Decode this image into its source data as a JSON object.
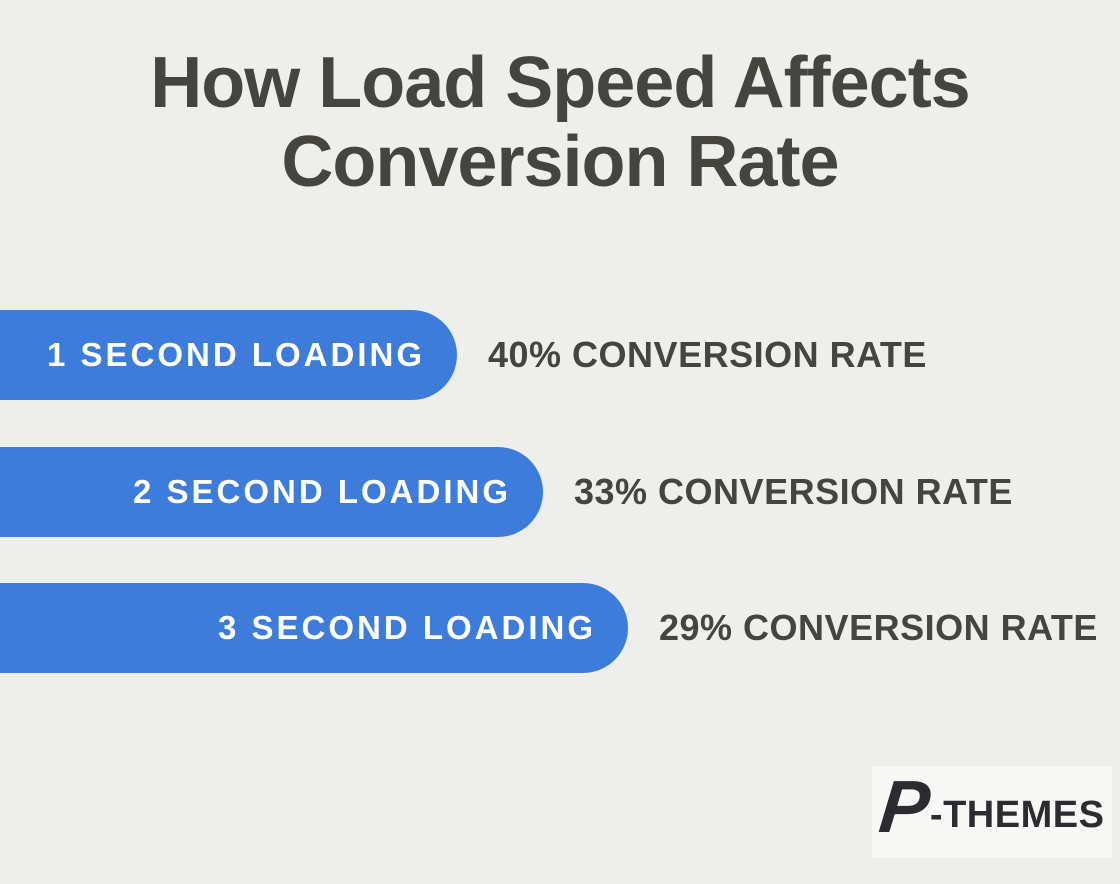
{
  "title": {
    "line1": "How Load Speed Affects",
    "line2": "Conversion Rate"
  },
  "rows": [
    {
      "seconds": 1,
      "conversion_rate_pct": 40,
      "bar_label": "1 SECOND LOADING",
      "rate_label": "40% CONVERSION RATE"
    },
    {
      "seconds": 2,
      "conversion_rate_pct": 33,
      "bar_label": "2 SECOND LOADING",
      "rate_label": "33% CONVERSION RATE"
    },
    {
      "seconds": 3,
      "conversion_rate_pct": 29,
      "bar_label": "3 SECOND LOADING",
      "rate_label": "29% CONVERSION RATE"
    }
  ],
  "logo": {
    "mark": "P",
    "text": "-THEMES"
  },
  "colors": {
    "background": "#eeeeec",
    "bar_blue": "#3e7cdc",
    "dark_text": "#46443e",
    "bar_text": "#ffffff",
    "logo_background": "#f7f7f5",
    "logo_text": "#2b2b30"
  },
  "chart_data": {
    "type": "bar",
    "orientation": "horizontal",
    "title": "How Load Speed Affects Conversion Rate",
    "categories": [
      "1 second loading",
      "2 second loading",
      "3 second loading"
    ],
    "series": [
      {
        "name": "Loading time (seconds, encoded by bar length)",
        "values": [
          1,
          2,
          3
        ]
      },
      {
        "name": "Conversion rate (%)",
        "values": [
          40,
          33,
          29
        ]
      }
    ],
    "value_labels": [
      "40% CONVERSION RATE",
      "33% CONVERSION RATE",
      "29% CONVERSION RATE"
    ],
    "bar_color": "#3e7cdc",
    "grid": false,
    "legend": false,
    "xlabel": "",
    "ylabel": ""
  }
}
